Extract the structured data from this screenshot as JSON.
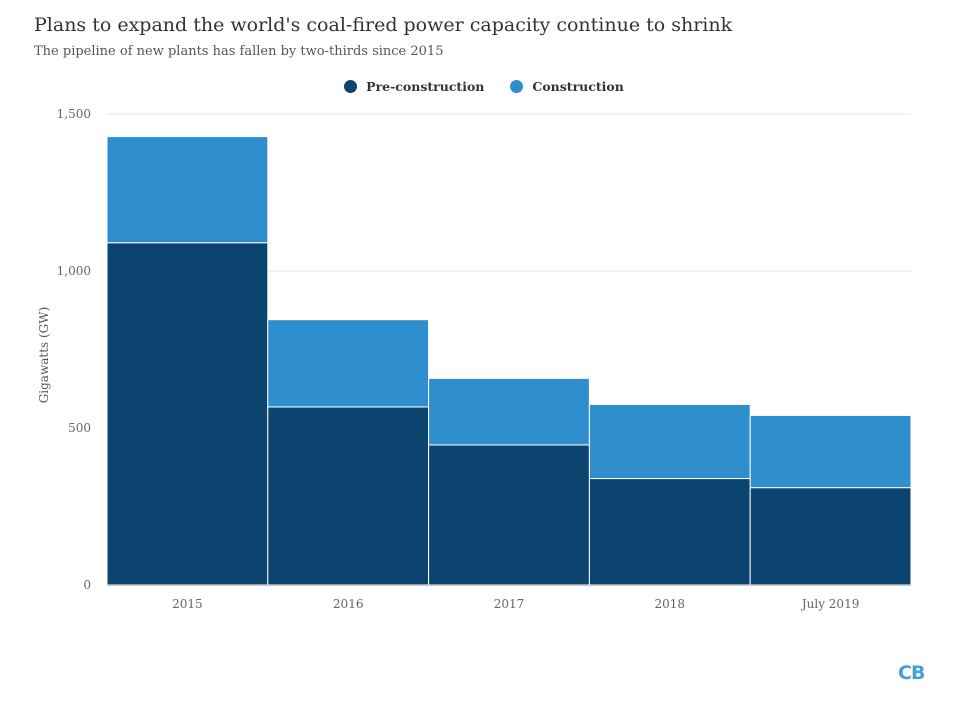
{
  "colors": {
    "pre_construction": "#0c4470",
    "construction": "#2f8fce",
    "grid": "#e6e6e6"
  },
  "logo": {
    "text": "CB"
  },
  "chart_data": {
    "type": "bar",
    "title": "Plans to expand the world's coal-fired power capacity continue to shrink",
    "subtitle": "The pipeline of new plants has fallen by two-thirds since 2015",
    "ylabel": "Gigawatts (GW)",
    "xlabel": "",
    "categories": [
      "2015",
      "2016",
      "2017",
      "2018",
      "July 2019"
    ],
    "series": [
      {
        "name": "Pre-construction",
        "values": [
          1090,
          567,
          446,
          339,
          310
        ]
      },
      {
        "name": "Construction",
        "values": [
          338,
          278,
          212,
          236,
          230
        ]
      }
    ],
    "stacked": true,
    "ylim": [
      0,
      1500
    ],
    "yticks": [
      0,
      500,
      1000,
      1500
    ],
    "ytick_labels": [
      "0",
      "500",
      "1,000",
      "1,500"
    ],
    "grid": true,
    "legend_position": "top-center"
  }
}
